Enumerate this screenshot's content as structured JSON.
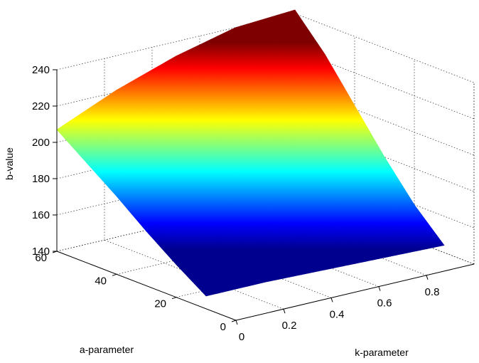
{
  "chart_data": {
    "type": "surface",
    "colormap": "jet",
    "xlabel": "k-parameter",
    "ylabel": "a-parameter",
    "zlabel": "b-value",
    "xlim": [
      0,
      1
    ],
    "ylim": [
      0,
      60
    ],
    "zlim": [
      140,
      240
    ],
    "x_ticks": [
      "0",
      "0.2",
      "0.4",
      "0.6",
      "0.8"
    ],
    "y_ticks": [
      "0",
      "20",
      "40",
      "60"
    ],
    "z_ticks": [
      "140",
      "160",
      "180",
      "200",
      "220",
      "240"
    ],
    "grid": true,
    "surface": {
      "k": [
        0,
        0.25,
        0.5,
        0.75,
        1.0
      ],
      "a": [
        10,
        20,
        30,
        40,
        50,
        60
      ],
      "b": [
        [
          147,
          158,
          170,
          183,
          195,
          207
        ],
        [
          147,
          160,
          175,
          191,
          206,
          221
        ],
        [
          146,
          161,
          178,
          196,
          214,
          232
        ],
        [
          145,
          161,
          180,
          200,
          221,
          240
        ],
        [
          144,
          160,
          180,
          202,
          224,
          242
        ]
      ]
    }
  }
}
